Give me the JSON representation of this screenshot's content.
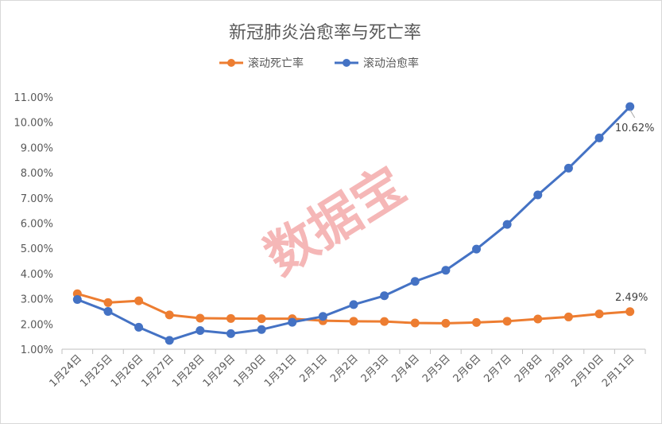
{
  "chart_data": {
    "type": "line",
    "title": "新冠肺炎治愈率与死亡率",
    "xlabel": "",
    "ylabel": "",
    "categories": [
      "1月24日",
      "1月25日",
      "1月26日",
      "1月27日",
      "1月28日",
      "1月29日",
      "1月30日",
      "1月31日",
      "2月1日",
      "2月2日",
      "2月3日",
      "2月4日",
      "2月5日",
      "2月6日",
      "2月7日",
      "2月8日",
      "2月9日",
      "2月10日",
      "2月11日"
    ],
    "y_ticks": [
      "1.00%",
      "2.00%",
      "3.00%",
      "4.00%",
      "5.00%",
      "6.00%",
      "7.00%",
      "8.00%",
      "9.00%",
      "10.00%",
      "11.00%"
    ],
    "ylim": [
      1,
      11
    ],
    "grid": false,
    "legend_position": "top",
    "series": [
      {
        "name": "滚动死亡率",
        "color": "#ED7D31",
        "values": [
          3.2,
          2.85,
          2.92,
          2.36,
          2.23,
          2.22,
          2.21,
          2.21,
          2.13,
          2.11,
          2.1,
          2.04,
          2.03,
          2.06,
          2.11,
          2.2,
          2.28,
          2.4,
          2.49
        ],
        "end_label": "2.49%"
      },
      {
        "name": "滚动治愈率",
        "color": "#4472C4",
        "values": [
          2.97,
          2.5,
          1.87,
          1.35,
          1.74,
          1.62,
          1.78,
          2.07,
          2.3,
          2.77,
          3.12,
          3.69,
          4.13,
          4.97,
          5.95,
          7.12,
          8.18,
          9.38,
          10.62
        ],
        "end_label": "10.62%"
      }
    ]
  },
  "watermark": "数据宝"
}
